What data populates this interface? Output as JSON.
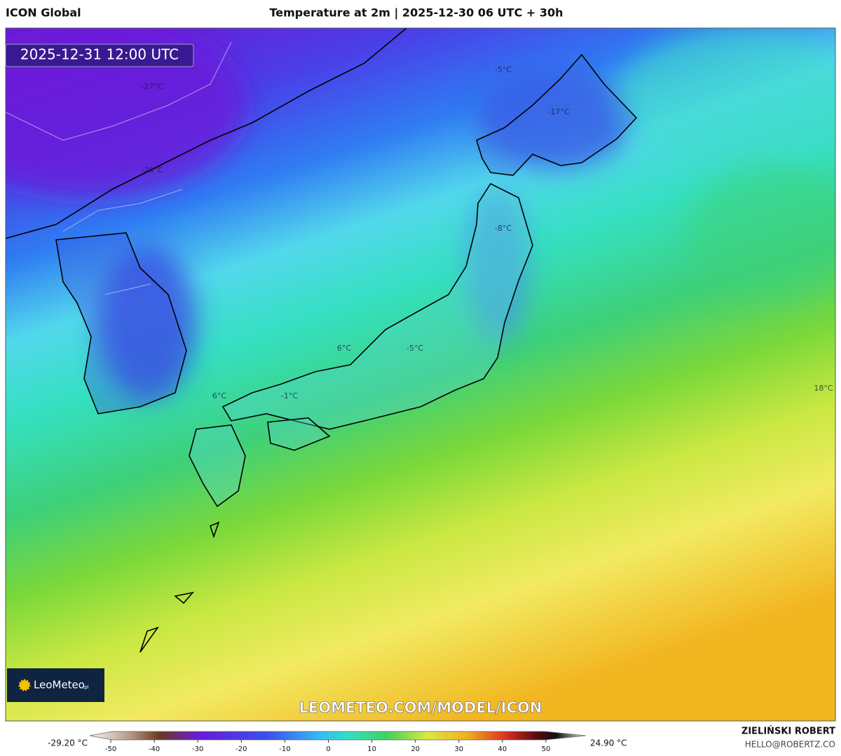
{
  "header": {
    "model": "ICON Global",
    "title": "Temperature at 2m | 2025-12-30 06 UTC + 30h"
  },
  "map": {
    "valid_time": "2025-12-31 12:00 UTC",
    "labels": [
      "-27°C",
      "-26°C",
      "-5°C",
      "-17°C",
      "-8°C",
      "-5°C",
      "6°C",
      "6°C",
      "-1°C",
      "18°C"
    ],
    "watermark": "LEOMETEO.COM/MODEL/ICON"
  },
  "logo": {
    "name": "LeoMeteo",
    "suffix": ".pl"
  },
  "footer": {
    "author": "ZIELIŃSKI ROBERT",
    "email": "HELLO@ROBERTZ.CO"
  },
  "colorbar": {
    "min_label": "-29.20 °C",
    "max_label": "24.90 °C",
    "range": [
      -55,
      55
    ],
    "ticks": [
      -50,
      -40,
      -30,
      -20,
      -10,
      0,
      10,
      20,
      30,
      40,
      50
    ]
  }
}
